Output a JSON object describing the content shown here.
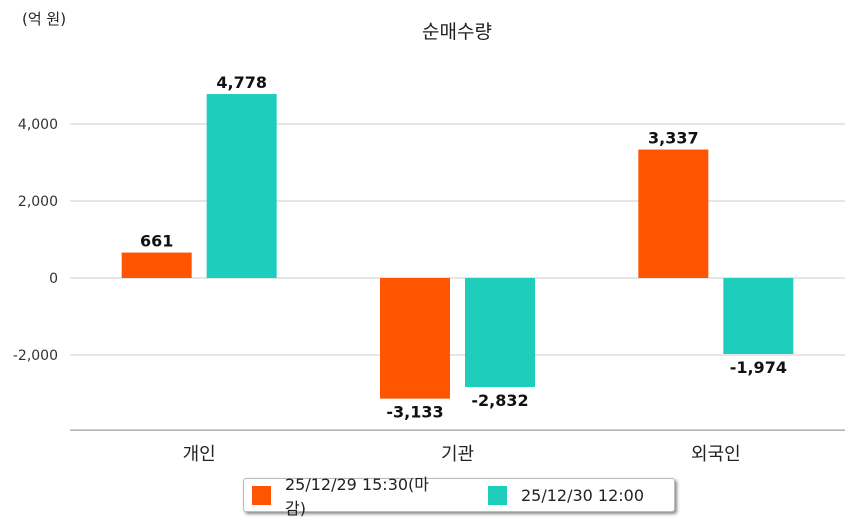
{
  "chart_data": {
    "type": "bar",
    "title": "순매수량",
    "unit_label": "(억 원)",
    "categories": [
      "개인",
      "기관",
      "외국인"
    ],
    "series": [
      {
        "name": "25/12/29 15:30(마감)",
        "color": "#ff5500",
        "values": [
          661,
          -3133,
          3337
        ],
        "labels": [
          "661",
          "-3,133",
          "3,337"
        ]
      },
      {
        "name": "25/12/30 12:00",
        "color": "#1ecdbc",
        "values": [
          4778,
          -2832,
          -1974
        ],
        "labels": [
          "4,778",
          "-2,832",
          "-1,974"
        ]
      }
    ],
    "yticks": [
      4000,
      2000,
      0,
      -2000
    ],
    "ytick_labels": [
      "4,000",
      "2,000",
      "0",
      "-2,000"
    ],
    "ylim": [
      -3950,
      6180
    ],
    "grid": true,
    "legend": "bottom"
  }
}
